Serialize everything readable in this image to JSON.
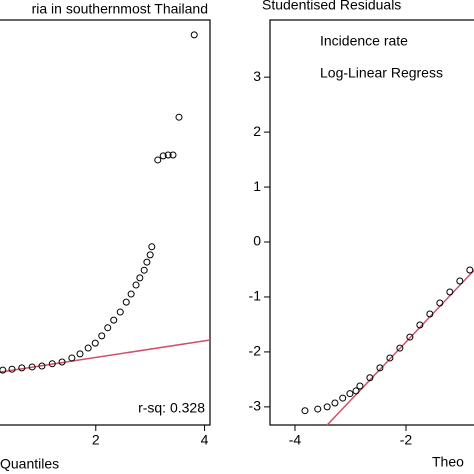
{
  "chart_data": [
    {
      "type": "scatter",
      "title": "ria in southernmost Thailand",
      "xlabel": "Quantiles",
      "annotation": "r-sq: 0.328",
      "x": [
        0.29,
        0.46,
        0.64,
        0.83,
        1.01,
        1.2,
        1.38,
        1.56,
        1.71,
        1.86,
        1.99,
        2.11,
        2.22,
        2.33,
        2.45,
        2.56,
        2.65,
        2.74,
        2.81,
        2.89,
        2.94,
        3.0,
        3.03,
        3.14,
        3.24,
        3.33,
        3.42,
        3.53,
        3.81
      ],
      "y": [
        0.22,
        0.24,
        0.27,
        0.29,
        0.31,
        0.36,
        0.4,
        0.49,
        0.58,
        0.71,
        0.82,
        0.98,
        1.16,
        1.33,
        1.51,
        1.73,
        1.91,
        2.11,
        2.27,
        2.44,
        2.62,
        2.78,
        2.96,
        4.89,
        4.98,
        5.0,
        5.0,
        5.84,
        7.67
      ],
      "color": "#000000",
      "fit_line": {
        "x": [
          0,
          4.1
        ],
        "y": [
          0.13,
          0.89
        ],
        "color": "#d0506a"
      },
      "xlim": [
        0,
        4.1
      ],
      "ylim": [
        -1,
        8
      ],
      "xticks": [
        2,
        4
      ]
    },
    {
      "type": "scatter",
      "title": "Studentised Residuals",
      "xlabel": "Theo",
      "legend": [
        "Incidence rate",
        "Log-Linear Regress"
      ],
      "x": [
        -3.82,
        -3.59,
        -3.42,
        -3.28,
        -3.14,
        -3.01,
        -2.9,
        -2.83,
        -2.65,
        -2.47,
        -2.29,
        -2.11,
        -1.93,
        -1.75,
        -1.57,
        -1.39,
        -1.21,
        -1.03,
        -0.85
      ],
      "y": [
        -3.07,
        -3.04,
        -3.0,
        -2.93,
        -2.84,
        -2.76,
        -2.71,
        -2.62,
        -2.47,
        -2.29,
        -2.11,
        -1.93,
        -1.73,
        -1.51,
        -1.31,
        -1.11,
        -0.91,
        -0.71,
        -0.51
      ],
      "color": "#000000",
      "fit_line": {
        "x": [
          -3.42,
          0
        ],
        "y": [
          -3.33,
          0.31
        ],
        "color": "#d0506a"
      },
      "xlim": [
        -4.45,
        0
      ],
      "ylim": [
        -3.33,
        4.04
      ],
      "xticks": [
        -4,
        -2
      ],
      "yticks": [
        -3,
        -2,
        -1,
        0,
        1,
        2,
        3
      ]
    }
  ]
}
